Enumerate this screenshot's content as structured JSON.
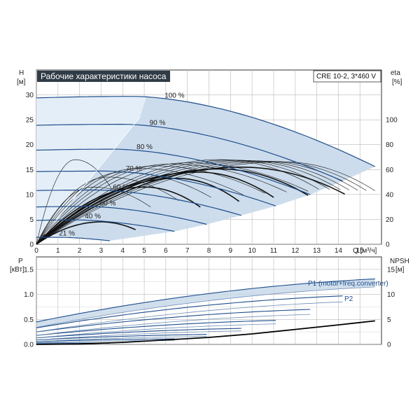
{
  "chart_data": [
    {
      "type": "line",
      "title": "Рабочие характеристики насоса",
      "model_label": "CRE 10-2, 3*460 V",
      "xlabel": "Q [м³/ч]",
      "ylabel_left": [
        "H",
        "[м]"
      ],
      "ylabel_right": [
        "eta",
        "[%]"
      ],
      "xlim": [
        0,
        16
      ],
      "ylim_left": [
        0,
        35
      ],
      "ylim_right": [
        0,
        140
      ],
      "x_ticks": [
        "0",
        "1",
        "2",
        "3",
        "4",
        "5",
        "6",
        "7",
        "8",
        "9",
        "10",
        "11",
        "12",
        "13",
        "14",
        "15"
      ],
      "y_ticks_left": [
        "0",
        "5",
        "10",
        "15",
        "20",
        "25",
        "30"
      ],
      "y_ticks_right": [
        "0",
        "20",
        "40",
        "60",
        "80",
        "100"
      ],
      "grid": true,
      "series": [
        {
          "name": "100 %",
          "shutoff_head": 29.4,
          "qmax": 15.7,
          "peak_head": 29.7,
          "peak_q": 4.5,
          "end_head": 15.6
        },
        {
          "name": "90 %",
          "shutoff_head": 23.9,
          "qmax": 14.2,
          "peak_head": 24.1,
          "peak_q": 4.0,
          "end_head": 12.7
        },
        {
          "name": "80 %",
          "shutoff_head": 18.9,
          "qmax": 12.7,
          "peak_head": 19.1,
          "peak_q": 3.6,
          "end_head": 10.0
        },
        {
          "name": "70 %",
          "shutoff_head": 14.6,
          "qmax": 11.1,
          "peak_head": 14.7,
          "peak_q": 3.2,
          "end_head": 7.7
        },
        {
          "name": "60 %",
          "shutoff_head": 10.8,
          "qmax": 9.5,
          "peak_head": 10.9,
          "peak_q": 2.7,
          "end_head": 5.8
        },
        {
          "name": "50 %",
          "shutoff_head": 7.5,
          "qmax": 7.9,
          "peak_head": 7.6,
          "peak_q": 2.3,
          "end_head": 4.0
        },
        {
          "name": "40 %",
          "shutoff_head": 4.8,
          "qmax": 6.4,
          "peak_head": 4.9,
          "peak_q": 1.8,
          "end_head": 2.6
        },
        {
          "name": "21 %",
          "shutoff_head": 1.4,
          "qmax": 3.4,
          "peak_head": 1.4,
          "peak_q": 1.0,
          "end_head": 0.7
        }
      ],
      "efficiency_curves": [
        {
          "peak_eta": 68.0,
          "peak_q": 8.5,
          "qmax": 13.1
        },
        {
          "peak_eta": 67.7,
          "peak_q": 9.0,
          "qmax": 13.6
        },
        {
          "peak_eta": 67.4,
          "peak_q": 9.5,
          "qmax": 14.1
        },
        {
          "peak_eta": 67.1,
          "peak_q": 10.0,
          "qmax": 14.5
        },
        {
          "peak_eta": 66.8,
          "peak_q": 10.5,
          "qmax": 14.9
        },
        {
          "peak_eta": 66.5,
          "peak_q": 11.0,
          "qmax": 15.3
        },
        {
          "peak_eta": 66.2,
          "peak_q": 11.5,
          "qmax": 15.7
        },
        {
          "peak_eta": 65.5,
          "peak_q": 7.0,
          "qmax": 12.6
        },
        {
          "peak_eta": 64.5,
          "peak_q": 6.2,
          "qmax": 11.6
        },
        {
          "peak_eta": 63.0,
          "peak_q": 5.5,
          "qmax": 10.6
        },
        {
          "peak_eta": 61.0,
          "peak_q": 4.7,
          "qmax": 9.6
        },
        {
          "peak_eta": 58.0,
          "peak_q": 4.0,
          "qmax": 8.1
        },
        {
          "peak_eta": 54.0,
          "peak_q": 3.3,
          "qmax": 6.6
        },
        {
          "peak_eta": 46.0,
          "peak_q": 2.6,
          "qmax": 5.3
        },
        {
          "peak_eta": 68.0,
          "peak_q": 1.8,
          "qmax": 3.5
        }
      ],
      "bold_efficiency_curves": [
        {
          "peak_eta": 62.0,
          "peak_q": 9.5,
          "qmax": 14.3
        },
        {
          "peak_eta": 60.5,
          "peak_q": 8.5,
          "qmax": 12.6
        },
        {
          "peak_eta": 58.0,
          "peak_q": 7.5,
          "qmax": 11.0
        },
        {
          "peak_eta": 53.0,
          "peak_q": 6.5,
          "qmax": 9.4
        },
        {
          "peak_eta": 46.0,
          "peak_q": 5.0,
          "qmax": 7.6
        },
        {
          "peak_eta": 18.0,
          "peak_q": 3.0,
          "qmax": 4.6
        }
      ]
    },
    {
      "type": "line",
      "ylabel_left": [
        "P",
        "[кВт]"
      ],
      "ylabel_right": [
        "NPSH",
        "[м]"
      ],
      "xlim": [
        0,
        16
      ],
      "ylim_left": [
        0,
        1.75
      ],
      "ylim_right": [
        0,
        17.5
      ],
      "y_ticks_left": [
        "0.0",
        "0.5",
        "1.0",
        "1.5"
      ],
      "y_ticks_right": [
        "0",
        "5",
        "10",
        "15"
      ],
      "grid": true,
      "p1_label": "P1 (motor+freq.converter)",
      "p2_label": "P2",
      "p1_curves": [
        {
          "p0": 0.45,
          "pend": 1.31,
          "qmax": 15.7
        },
        {
          "p0": 0.33,
          "pend": 0.97,
          "qmax": 14.2
        },
        {
          "p0": 0.25,
          "pend": 0.7,
          "qmax": 12.7
        },
        {
          "p0": 0.18,
          "pend": 0.48,
          "qmax": 11.1
        },
        {
          "p0": 0.13,
          "pend": 0.32,
          "qmax": 9.5
        },
        {
          "p0": 0.09,
          "pend": 0.2,
          "qmax": 7.9
        },
        {
          "p0": 0.06,
          "pend": 0.11,
          "qmax": 6.4
        },
        {
          "p0": 0.03,
          "pend": 0.03,
          "qmax": 3.4
        }
      ],
      "p2_curves": [
        {
          "p0": 0.34,
          "pend": 1.15,
          "qmax": 15.7
        },
        {
          "p0": 0.25,
          "pend": 0.85,
          "qmax": 14.2
        },
        {
          "p0": 0.18,
          "pend": 0.6,
          "qmax": 12.7
        },
        {
          "p0": 0.13,
          "pend": 0.41,
          "qmax": 11.1
        },
        {
          "p0": 0.09,
          "pend": 0.27,
          "qmax": 9.5
        },
        {
          "p0": 0.06,
          "pend": 0.16,
          "qmax": 7.9
        },
        {
          "p0": 0.04,
          "pend": 0.08,
          "qmax": 6.4
        },
        {
          "p0": 0.02,
          "pend": 0.02,
          "qmax": 3.4
        }
      ],
      "npsh_curve": {
        "x": [
          0,
          2,
          4,
          6,
          8,
          10,
          12,
          14,
          15.7
        ],
        "y": [
          0.0,
          0.1,
          0.4,
          0.9,
          1.4,
          2.1,
          3.0,
          3.9,
          4.7
        ]
      }
    }
  ],
  "colors": {
    "curve": "#1f4e8c",
    "band": "#c9d9ea",
    "band_light": "#e4eef8",
    "grid": "#b9b9b9",
    "title_bg": "#2f3b46",
    "efficiency": "#111111"
  }
}
